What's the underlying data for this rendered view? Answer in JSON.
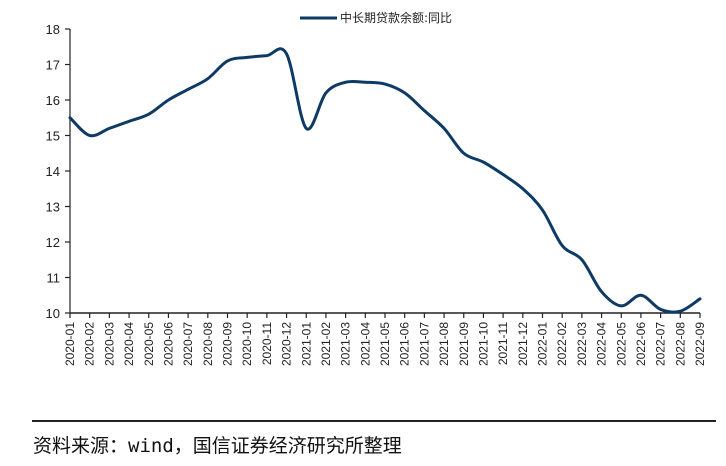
{
  "chart_data": {
    "type": "line",
    "title": "",
    "xlabel": "",
    "ylabel": "",
    "ylim": [
      10,
      18
    ],
    "yticks": [
      10,
      11,
      12,
      13,
      14,
      15,
      16,
      17,
      18
    ],
    "grid": false,
    "legend_position": "top-center",
    "categories": [
      "2020-01",
      "2020-02",
      "2020-03",
      "2020-04",
      "2020-05",
      "2020-06",
      "2020-07",
      "2020-08",
      "2020-09",
      "2020-10",
      "2020-11",
      "2020-12",
      "2021-01",
      "2021-02",
      "2021-03",
      "2021-04",
      "2021-05",
      "2021-06",
      "2021-07",
      "2021-08",
      "2021-09",
      "2021-10",
      "2021-11",
      "2021-12",
      "2022-01",
      "2022-02",
      "2022-03",
      "2022-04",
      "2022-05",
      "2022-06",
      "2022-07",
      "2022-08",
      "2022-09"
    ],
    "series": [
      {
        "name": "中长期贷款余额:同比",
        "color": "#0d3b66",
        "values": [
          15.5,
          15.0,
          15.2,
          15.4,
          15.6,
          16.0,
          16.3,
          16.6,
          17.1,
          17.2,
          17.25,
          17.3,
          15.2,
          16.2,
          16.5,
          16.5,
          16.45,
          16.2,
          15.7,
          15.2,
          14.5,
          14.25,
          13.9,
          13.5,
          12.9,
          11.9,
          11.5,
          10.6,
          10.2,
          10.5,
          10.1,
          10.05,
          10.4
        ]
      }
    ]
  },
  "legend": {
    "label": "中长期贷款余额:同比"
  },
  "source": {
    "text": "资料来源：wind，国信证券经济研究所整理"
  }
}
